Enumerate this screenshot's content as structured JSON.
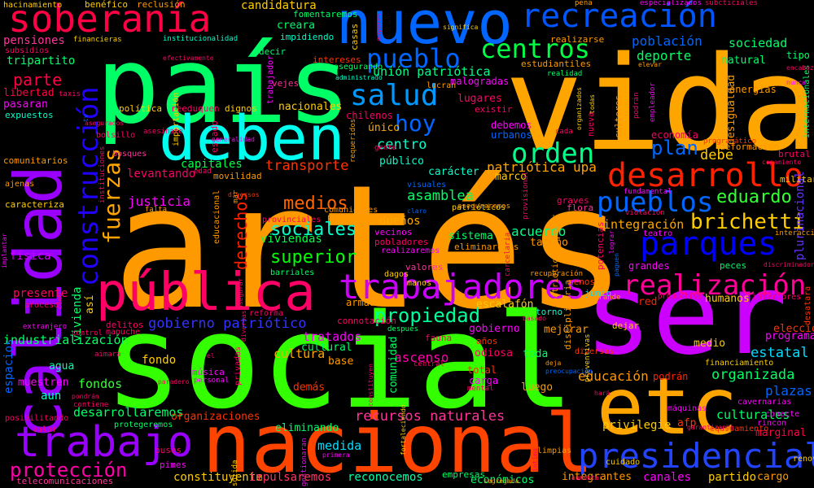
{
  "words": [
    {
      "text": "artés",
      "color": "#ff9900"
    },
    {
      "text": "social",
      "color": "#33ff00"
    },
    {
      "text": "vida",
      "color": "#ffa500"
    },
    {
      "text": "país",
      "color": "#00ff66"
    },
    {
      "text": "ser",
      "color": "#cc00ff"
    },
    {
      "text": "nuevo",
      "color": "#0066ff"
    },
    {
      "text": "nacional",
      "color": "#ff4400"
    },
    {
      "text": "etc",
      "color": "#ffa500"
    },
    {
      "text": "deben",
      "color": "#00ffee"
    },
    {
      "text": "calidad",
      "color": "#9900ff"
    },
    {
      "text": "pública",
      "color": "#ff0066"
    },
    {
      "text": "soberanía",
      "color": "#ff0044"
    },
    {
      "text": "recreación",
      "color": "#0055ff"
    },
    {
      "text": "trabajo",
      "color": "#9900ff"
    },
    {
      "text": "presidencial",
      "color": "#2244ff"
    },
    {
      "text": "trabajadores",
      "color": "#cc00ff"
    },
    {
      "text": "desarrollo",
      "color": "#ff2200"
    },
    {
      "text": "parques",
      "color": "#0000ff"
    },
    {
      "text": "construcción",
      "color": "#2200ff"
    },
    {
      "text": "realización",
      "color": "#ff0099"
    },
    {
      "text": "pueblos",
      "color": "#0066ff"
    },
    {
      "text": "salud",
      "color": "#0099ff"
    },
    {
      "text": "centros",
      "color": "#00ff44"
    },
    {
      "text": "orden",
      "color": "#00ff88"
    },
    {
      "text": "pueblo",
      "color": "#0066ff"
    },
    {
      "text": "hoy",
      "color": "#0066ff"
    },
    {
      "text": "fuerzas",
      "color": "#ffa500"
    },
    {
      "text": "brichetti",
      "color": "#ffcc00"
    },
    {
      "text": "protección",
      "color": "#ff00aa"
    },
    {
      "text": "propiedad",
      "color": "#00ff99"
    },
    {
      "text": "eduardo",
      "color": "#33ff33"
    },
    {
      "text": "plan",
      "color": "#0066ff"
    },
    {
      "text": "superior",
      "color": "#00ff00"
    },
    {
      "text": "sociales",
      "color": "#00ffcc"
    },
    {
      "text": "medios",
      "color": "#ff6600"
    },
    {
      "text": "gobierno patriótico",
      "color": "#3333ff"
    },
    {
      "text": "recursos naturales",
      "color": "#ff3399"
    },
    {
      "text": "derechos",
      "color": "#ff2200"
    },
    {
      "text": "parte",
      "color": "#ff0044"
    },
    {
      "text": "desarrollaremos",
      "color": "#00ff66"
    },
    {
      "text": "organizada",
      "color": "#00ff66"
    },
    {
      "text": "estatal",
      "color": "#00ddff"
    },
    {
      "text": "transporte",
      "color": "#ff3300"
    },
    {
      "text": "debe",
      "color": "#ffcc00"
    },
    {
      "text": "asamblea",
      "color": "#00ff66"
    },
    {
      "text": "justicia",
      "color": "#ff00ff"
    },
    {
      "text": "patriótica upa",
      "color": "#ffa500"
    },
    {
      "text": "cultura",
      "color": "#ffaa00"
    },
    {
      "text": "medida",
      "color": "#00ddff"
    },
    {
      "text": "tratados",
      "color": "#ff00ff"
    },
    {
      "text": "ascenso",
      "color": "#ff00aa"
    },
    {
      "text": "fondo",
      "color": "#ffcc00"
    },
    {
      "text": "fondos",
      "color": "#33ff33"
    },
    {
      "text": "educación",
      "color": "#ff9900"
    },
    {
      "text": "centro",
      "color": "#00ffcc"
    },
    {
      "text": "deporte",
      "color": "#00ff66"
    },
    {
      "text": "población",
      "color": "#0066ff"
    },
    {
      "text": "sociedad",
      "color": "#00ff66"
    },
    {
      "text": "unión patriótica",
      "color": "#00ff88"
    },
    {
      "text": "integración",
      "color": "#ffa500"
    },
    {
      "text": "acuerdo",
      "color": "#00ff88"
    },
    {
      "text": "reconocemos",
      "color": "#00ffaa"
    },
    {
      "text": "constituyente",
      "color": "#ffcc00"
    },
    {
      "text": "impulsaremos",
      "color": "#ff3366"
    },
    {
      "text": "industrialización",
      "color": "#00ff66"
    },
    {
      "text": "culturales",
      "color": "#00ff66"
    },
    {
      "text": "programa",
      "color": "#ff00ff"
    },
    {
      "text": "elección",
      "color": "#ff3300"
    },
    {
      "text": "plazas",
      "color": "#0066ff"
    },
    {
      "text": "viviendas",
      "color": "#00ff44"
    },
    {
      "text": "dueños",
      "color": "#ffaa00"
    },
    {
      "text": "capitales",
      "color": "#00ff44"
    },
    {
      "text": "levantando",
      "color": "#ff0066"
    },
    {
      "text": "tripartito",
      "color": "#00ff66"
    },
    {
      "text": "pensiones",
      "color": "#ff3399"
    },
    {
      "text": "candidatura",
      "color": "#ffcc00"
    },
    {
      "text": "libertad",
      "color": "#ff0044"
    },
    {
      "text": "pasaran",
      "color": "#ff00ff"
    },
    {
      "text": "comunitarios",
      "color": "#ff9900"
    },
    {
      "text": "física",
      "color": "#cc00ff"
    },
    {
      "text": "presente",
      "color": "#ff0066"
    },
    {
      "text": "aun",
      "color": "#00ffcc"
    },
    {
      "text": "espacios",
      "color": "#0066ff"
    },
    {
      "text": "muestren",
      "color": "#ff00ff"
    },
    {
      "text": "agua",
      "color": "#00ffaa"
    },
    {
      "text": "vivienda",
      "color": "#00ff66"
    },
    {
      "text": "así",
      "color": "#ffcc00"
    },
    {
      "text": "nacionales",
      "color": "#ffcc00"
    },
    {
      "text": "lugares",
      "color": "#ff0066"
    },
    {
      "text": "único",
      "color": "#ffaa00"
    },
    {
      "text": "público",
      "color": "#00ffcc"
    },
    {
      "text": "carácter",
      "color": "#00ffcc"
    },
    {
      "text": "marco",
      "color": "#ffcc00"
    },
    {
      "text": "sistema",
      "color": "#00ff66"
    },
    {
      "text": "tamaño",
      "color": "#ff9900"
    },
    {
      "text": "armadas",
      "color": "#ff9900"
    },
    {
      "text": "escalafón",
      "color": "#ffcc00"
    },
    {
      "text": "gobierno",
      "color": "#ff00ff"
    },
    {
      "text": "comunidad",
      "color": "#00ff66"
    },
    {
      "text": "cultural",
      "color": "#00ff66"
    },
    {
      "text": "base",
      "color": "#ff9900"
    },
    {
      "text": "toda",
      "color": "#00ff66"
    },
    {
      "text": "eliminando",
      "color": "#00ff66"
    },
    {
      "text": "organizaciones",
      "color": "#ff3300"
    },
    {
      "text": "odiosa",
      "color": "#ff0066"
    },
    {
      "text": "total",
      "color": "#ff3300"
    },
    {
      "text": "carga",
      "color": "#ff00ff"
    },
    {
      "text": "luego",
      "color": "#ff9900"
    },
    {
      "text": "mejorar",
      "color": "#ff9900"
    },
    {
      "text": "medio",
      "color": "#ffcc00"
    },
    {
      "text": "red",
      "color": "#ff2200"
    },
    {
      "text": "podrán",
      "color": "#ff2200"
    },
    {
      "text": "humanos",
      "color": "#ffcc00"
    },
    {
      "text": "grandes",
      "color": "#ff00ff"
    },
    {
      "text": "peces",
      "color": "#00ff66"
    },
    {
      "text": "dejar",
      "color": "#ffcc00"
    },
    {
      "text": "canales",
      "color": "#ff00ff"
    },
    {
      "text": "partido",
      "color": "#ffcc00"
    },
    {
      "text": "cargo",
      "color": "#ff9900"
    },
    {
      "text": "integrantes",
      "color": "#ff9900"
    },
    {
      "text": "económicos",
      "color": "#00ff66"
    },
    {
      "text": "empresas",
      "color": "#00ff66"
    },
    {
      "text": "privilegie",
      "color": "#ffcc00"
    },
    {
      "text": "afp",
      "color": "#ff3300"
    },
    {
      "text": "marginal",
      "color": "#ff0044"
    },
    {
      "text": "natural",
      "color": "#00ff66"
    },
    {
      "text": "energías",
      "color": "#ff9900"
    },
    {
      "text": "economía",
      "color": "#ff0066"
    },
    {
      "text": "deformación",
      "color": "#ff9900"
    },
    {
      "text": "desigualdad",
      "color": "#ff9900"
    },
    {
      "text": "plurinacional",
      "color": "#6633ff"
    },
    {
      "text": "tipo",
      "color": "#00ff66"
    },
    {
      "text": "brutal",
      "color": "#ff0066"
    },
    {
      "text": "militares",
      "color": "#ffcc00"
    },
    {
      "text": "vejes",
      "color": "#ff3399"
    },
    {
      "text": "dignos",
      "color": "#ffcc00"
    },
    {
      "text": "reeduquen",
      "color": "#ff0066"
    },
    {
      "text": "política",
      "color": "#ffcc00"
    },
    {
      "text": "intereses",
      "color": "#ff3300"
    },
    {
      "text": "creara",
      "color": "#00ff66"
    },
    {
      "text": "decir",
      "color": "#00ff66"
    },
    {
      "text": "impidiendo",
      "color": "#00ffcc"
    },
    {
      "text": "fomentaremos",
      "color": "#00ff66"
    },
    {
      "text": "estudiantiles",
      "color": "#ff9900"
    },
    {
      "text": "realizarse",
      "color": "#ff9900"
    },
    {
      "text": "casas",
      "color": "#ffcc00"
    },
    {
      "text": "malogradas",
      "color": "#ff00ff"
    },
    {
      "text": "debemos",
      "color": "#ff00ff"
    },
    {
      "text": "urbanos",
      "color": "#0066ff"
    },
    {
      "text": "chilenos",
      "color": "#ff0066"
    },
    {
      "text": "existir",
      "color": "#ff0066"
    },
    {
      "text": "flora",
      "color": "#ff3399"
    },
    {
      "text": "graves",
      "color": "#ff0066"
    },
    {
      "text": "pobladores",
      "color": "#ff0066"
    },
    {
      "text": "vecinos",
      "color": "#ff00ff"
    },
    {
      "text": "eliminaremos",
      "color": "#ff9900"
    },
    {
      "text": "valores",
      "color": "#ff3399"
    },
    {
      "text": "connotación",
      "color": "#ff0066"
    },
    {
      "text": "fauna",
      "color": "#ff0066"
    },
    {
      "text": "junio",
      "color": "#00ddff"
    },
    {
      "text": "menos",
      "color": "#ff3300"
    },
    {
      "text": "torno",
      "color": "#00ffcc"
    },
    {
      "text": "años",
      "color": "#ff3300"
    },
    {
      "text": "demás",
      "color": "#ff3300"
    },
    {
      "text": "música",
      "color": "#ff00ff"
    },
    {
      "text": "buses",
      "color": "#ff0066"
    },
    {
      "text": "pimes",
      "color": "#ff00ff"
    },
    {
      "text": "delitos",
      "color": "#ff0066"
    },
    {
      "text": "telecomunicaciones",
      "color": "#ff3399"
    },
    {
      "text": "hacinamiento",
      "color": "#ffcc00"
    },
    {
      "text": "benéfico",
      "color": "#ffcc00"
    },
    {
      "text": "reclusión",
      "color": "#ff9900"
    },
    {
      "text": "subsidios",
      "color": "#ff0066"
    },
    {
      "text": "bosques",
      "color": "#ff3399"
    },
    {
      "text": "bolsillo",
      "color": "#ff0066"
    },
    {
      "text": "expuestos",
      "color": "#00ffcc"
    },
    {
      "text": "estado",
      "color": "#ff0066"
    },
    {
      "text": "movilidad",
      "color": "#ff9900"
    },
    {
      "text": "caracteriza",
      "color": "#ffcc00"
    },
    {
      "text": "ajenas",
      "color": "#ff9900"
    },
    {
      "text": "mapuche",
      "color": "#ff0066"
    },
    {
      "text": "control",
      "color": "#ff0066"
    },
    {
      "text": "aimara",
      "color": "#ff0066"
    },
    {
      "text": "contiene",
      "color": "#ff0066"
    },
    {
      "text": "reforma",
      "color": "#ff0066"
    },
    {
      "text": "manos",
      "color": "#ffcc00"
    },
    {
      "text": "dagos",
      "color": "#ffcc00"
    },
    {
      "text": "barriales",
      "color": "#00ff66"
    },
    {
      "text": "patrióticos",
      "color": "#ffcc00"
    },
    {
      "text": "visuales",
      "color": "#0066ff"
    },
    {
      "text": "máquinas",
      "color": "#ff00ff"
    },
    {
      "text": "teatro",
      "color": "#ff00ff"
    },
    {
      "text": "rincon",
      "color": "#ff00ff"
    },
    {
      "text": "cuidado",
      "color": "#ffcc00"
    },
    {
      "text": "limpias",
      "color": "#ff9900"
    },
    {
      "text": "diversas",
      "color": "#ff3300"
    },
    {
      "text": "grande",
      "color": "#ff9900"
    },
    {
      "text": "productivo",
      "color": "#ff0066"
    },
    {
      "text": "inferiores",
      "color": "#ff0066"
    },
    {
      "text": "equipamiento",
      "color": "#ff3300"
    },
    {
      "text": "conecte",
      "color": "#ff00ff"
    },
    {
      "text": "cavernarias",
      "color": "#ff00ff"
    },
    {
      "text": "financiamiento",
      "color": "#ffcc00"
    },
    {
      "text": "educacional",
      "color": "#ff9900"
    },
    {
      "text": "protegeremos",
      "color": "#00ff66"
    },
    {
      "text": "sólida",
      "color": "#ffcc00"
    },
    {
      "text": "gestionaran",
      "color": "#ff00ff"
    },
    {
      "text": "posibilitando",
      "color": "#ff0066"
    },
    {
      "text": "valor",
      "color": "#ff0066"
    },
    {
      "text": "desatara",
      "color": "#ff3300"
    },
    {
      "text": "internacionales",
      "color": "#00ff66"
    },
    {
      "text": "violación",
      "color": "#ff0066"
    },
    {
      "text": "fundamental",
      "color": "#ff00ff"
    },
    {
      "text": "interacción",
      "color": "#ff9900"
    },
    {
      "text": "lucran",
      "color": "#ff9900"
    },
    {
      "text": "potencias",
      "color": "#ff0066"
    },
    {
      "text": "nueva",
      "color": "#ff0066"
    },
    {
      "text": "cultores",
      "color": "#ff9900"
    },
    {
      "text": "importación",
      "color": "#ffcc00"
    },
    {
      "text": "trabajador",
      "color": "#ff00ff"
    },
    {
      "text": "asegurando",
      "color": "#00ff66"
    },
    {
      "text": "privadas",
      "color": "#ff0066"
    },
    {
      "text": "particulares",
      "color": "#ff9900"
    },
    {
      "text": "realizaremos",
      "color": "#ff00ff"
    },
    {
      "text": "recuperación",
      "color": "#ff9900"
    },
    {
      "text": "comunidades",
      "color": "#ff9900"
    },
    {
      "text": "provinciales",
      "color": "#ff0066"
    },
    {
      "text": "personal",
      "color": "#ff00ff"
    },
    {
      "text": "después",
      "color": "#00ff66"
    },
    {
      "text": "extranjero",
      "color": "#ff00ff"
    },
    {
      "text": "proceso",
      "color": "#ff0066"
    },
    {
      "text": "edad",
      "color": "#ff0066"
    },
    {
      "text": "asesinato",
      "color": "#ff0066"
    },
    {
      "text": "mar",
      "color": "#ff9900"
    },
    {
      "text": "gente",
      "color": "#ff0066"
    },
    {
      "text": "cada",
      "color": "#ff0066"
    },
    {
      "text": "pena",
      "color": "#ff9900"
    },
    {
      "text": "especializados",
      "color": "#ff00ff"
    },
    {
      "text": "subcticiales",
      "color": "#ff0066"
    },
    {
      "text": "financieras",
      "color": "#ffcc00"
    },
    {
      "text": "institucionalidad",
      "color": "#00ffcc"
    },
    {
      "text": "efectivamente",
      "color": "#ff0066"
    },
    {
      "text": "mayores",
      "color": "#ff0066"
    },
    {
      "text": "significa",
      "color": "#ffcc00"
    },
    {
      "text": "realidad",
      "color": "#00ff66"
    },
    {
      "text": "elevar",
      "color": "#ff9900"
    },
    {
      "text": "encabezado",
      "color": "#ff0066"
    },
    {
      "text": "podrán",
      "color": "#ff0066"
    },
    {
      "text": "empleador",
      "color": "#ff00ff"
    },
    {
      "text": "requeridos",
      "color": "#ff9900"
    },
    {
      "text": "todas",
      "color": "#ffcc00"
    },
    {
      "text": "organizados",
      "color": "#ffcc00"
    },
    {
      "text": "copamiento",
      "color": "#ff0066"
    },
    {
      "text": "programático",
      "color": "#ff3300"
    },
    {
      "text": "falta",
      "color": "#ff9900"
    },
    {
      "text": "instituciones",
      "color": "#ff0066"
    },
    {
      "text": "disciplinaria",
      "color": "#ff9900"
    },
    {
      "text": "patriótico popular",
      "color": "#ff9900"
    },
    {
      "text": "central",
      "color": "#ff0066"
    },
    {
      "text": "mental",
      "color": "#ff0066"
    },
    {
      "text": "primera",
      "color": "#ff00ff"
    },
    {
      "text": "segregada",
      "color": "#ff9900"
    },
    {
      "text": "íntima",
      "color": "#ff0066"
    },
    {
      "text": "fortaleciendo",
      "color": "#ffcc00"
    },
    {
      "text": "provisional",
      "color": "#ff0066"
    },
    {
      "text": "paguen",
      "color": "#0066ff"
    },
    {
      "text": "preventivas",
      "color": "#ffcc00"
    },
    {
      "text": "preocupación",
      "color": "#0066ff"
    },
    {
      "text": "deja",
      "color": "#ff9900"
    },
    {
      "text": "carcelaria",
      "color": "#ff0066"
    },
    {
      "text": "lograr",
      "color": "#ff00ff"
    },
    {
      "text": "garantizando",
      "color": "#ff0066"
    },
    {
      "text": "discriminador",
      "color": "#ff0066"
    },
    {
      "text": "renovables",
      "color": "#ffcc00"
    },
    {
      "text": "tv",
      "color": "#0066ff"
    },
    {
      "text": "aseguraremos",
      "color": "#ff9900"
    },
    {
      "text": "claro",
      "color": "#0066ff"
    },
    {
      "text": "basado",
      "color": "#ff0066"
    },
    {
      "text": "hará",
      "color": "#ff0066"
    },
    {
      "text": "diversos",
      "color": "#ff3300"
    },
    {
      "text": "asegurar",
      "color": "#ff0066"
    },
    {
      "text": "nunca",
      "color": "#ff00ff"
    },
    {
      "text": "pondrán",
      "color": "#ff0066"
    },
    {
      "text": "generalidad",
      "color": "#ff00ff"
    },
    {
      "text": "cómo",
      "color": "#ff0066"
    },
    {
      "text": "taxis",
      "color": "#ff0066"
    },
    {
      "text": "el",
      "color": "#ff0066"
    },
    {
      "text": "asegurados",
      "color": "#ff0066"
    },
    {
      "text": "paradero",
      "color": "#ff0066"
    },
    {
      "text": "constituyen",
      "color": "#ff0066"
    },
    {
      "text": "implantar",
      "color": "#ff00ff"
    },
    {
      "text": "administrado",
      "color": "#00ffcc"
    },
    {
      "text": "aumentar",
      "color": "#ff0066"
    },
    {
      "text": "diversas",
      "color": "#ff0066"
    },
    {
      "text": "aseguradoras",
      "color": "#ff0066"
    }
  ]
}
